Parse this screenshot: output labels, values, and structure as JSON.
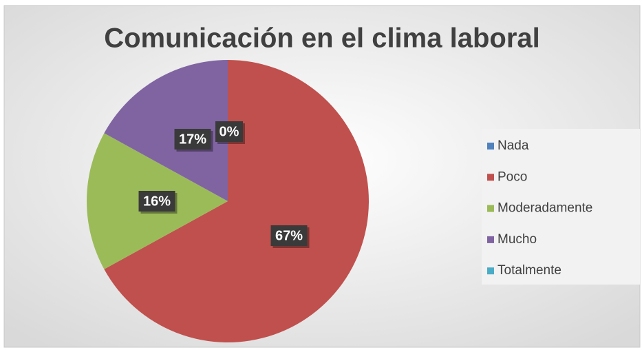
{
  "chart_data": {
    "type": "pie",
    "title": "Comunicación en el clima laboral",
    "categories": [
      "Nada",
      "Poco",
      "Moderadamente",
      "Mucho",
      "Totalmente"
    ],
    "values": [
      0,
      67,
      16,
      17,
      0
    ],
    "value_labels": [
      "0%",
      "67%",
      "16%",
      "17%",
      null
    ],
    "colors": [
      "#4f81bd",
      "#c0504d",
      "#9bbb59",
      "#8064a2",
      "#4bacc6"
    ],
    "legend": "right"
  }
}
